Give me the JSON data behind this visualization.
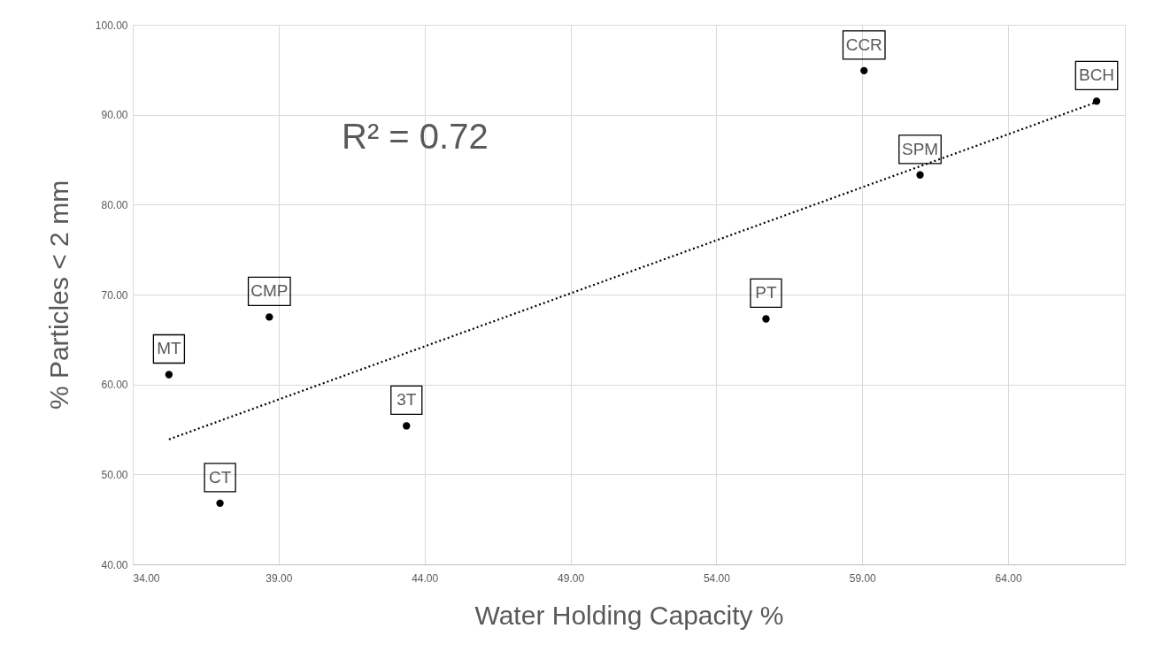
{
  "chart_data": {
    "type": "scatter",
    "xlabel": "Water Holding Capacity %",
    "ylabel": "% Particles < 2 mm",
    "annotations": [
      "R² = 0.72",
      {
        "text": "MT",
        "x": 35.24,
        "y": 61.1
      },
      {
        "text": "CT",
        "x": 36.99,
        "y": 46.8
      },
      {
        "text": "CMP",
        "x": 38.68,
        "y": 67.5
      },
      {
        "text": "3T",
        "x": 43.38,
        "y": 55.4
      },
      {
        "text": "PT",
        "x": 55.7,
        "y": 67.3
      },
      {
        "text": "CCR",
        "x": 59.06,
        "y": 94.9
      },
      {
        "text": "SPM",
        "x": 60.98,
        "y": 83.3
      },
      {
        "text": "BCH",
        "x": 67.03,
        "y": 91.5
      }
    ],
    "series": [
      {
        "color": "#000000",
        "marker": "circle",
        "x": [
          35.24,
          36.99,
          38.68,
          43.38,
          55.7,
          59.06,
          60.98,
          67.03
        ],
        "values": [
          61.1,
          46.8,
          67.5,
          55.4,
          67.3,
          94.9,
          83.3,
          91.5
        ]
      },
      {
        "type": "line",
        "color": "#000000",
        "line_style": "dotted",
        "x": [
          35.24,
          67.03
        ],
        "values": [
          53.9,
          91.4
        ]
      }
    ],
    "xlim": [
      34,
      68
    ],
    "xticks": [
      {
        "value": 34,
        "label": "34.00"
      },
      {
        "value": 39,
        "label": "39.00"
      },
      {
        "value": 44,
        "label": "44.00"
      },
      {
        "value": 49,
        "label": "49.00"
      },
      {
        "value": 54,
        "label": "54.00"
      },
      {
        "value": 59,
        "label": "59.00"
      },
      {
        "value": 64,
        "label": "64.00"
      }
    ],
    "ylim": [
      40,
      100
    ],
    "yticks": [
      {
        "value": 40,
        "label": "40.00"
      },
      {
        "value": 50,
        "label": "50.00"
      },
      {
        "value": 60,
        "label": "60.00"
      },
      {
        "value": 70,
        "label": "70.00"
      },
      {
        "value": 80,
        "label": "80.00"
      },
      {
        "value": 90,
        "label": "90.00"
      },
      {
        "value": 100,
        "label": "100.00"
      }
    ],
    "grid": true
  }
}
